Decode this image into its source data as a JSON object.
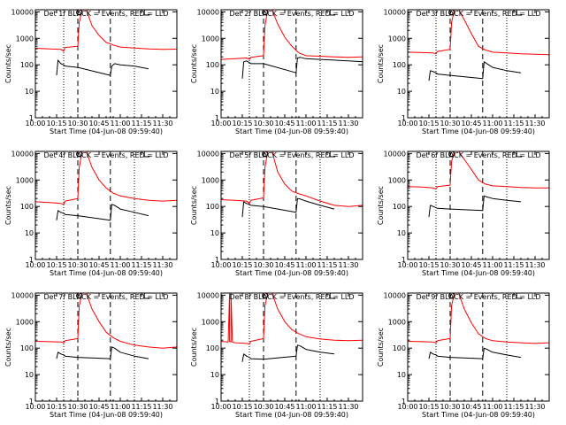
{
  "chart_data": {
    "type": "line",
    "xlabel": "Start Time (04-Jun-08 09:59:40)",
    "ylabel": "Counts/sec",
    "xlim": [
      "10:00",
      "11:40"
    ],
    "x_tick_labels": [
      "10:00",
      "10:15",
      "10:30",
      "10:45",
      "11:00",
      "11:15",
      "11:30"
    ],
    "y_scale": "log",
    "ylim": [
      1,
      12000
    ],
    "y_tick_labels": [
      "1",
      "10",
      "100",
      "1000",
      "10000"
    ],
    "colors": {
      "events": "#000000",
      "lld": "#ff0000"
    },
    "dotted_lines_x": [
      "10:20",
      "11:10"
    ],
    "dashed_lines_x": [
      "10:30",
      "10:53"
    ],
    "panels": [
      {
        "title": "Det 1f BLACK = Events, RED = LLD",
        "series": [
          {
            "key": "lld",
            "color": "#ff0000",
            "x": [
              "10:00",
              "10:10",
              "10:18",
              "10:20",
              "10:21",
              "10:30",
              "10:31",
              "10:33",
              "10:36",
              "10:40",
              "10:45",
              "10:50",
              "10:55",
              "11:00",
              "11:10",
              "11:20",
              "11:30",
              "11:40"
            ],
            "values": [
              420,
              400,
              380,
              330,
              450,
              500,
              4000,
              12000,
              12000,
              3000,
              1300,
              700,
              560,
              470,
              430,
              400,
              380,
              390
            ]
          },
          {
            "key": "events",
            "color": "#000000",
            "x": [
              "10:15",
              "10:16",
              "10:18",
              "10:20",
              "10:21",
              "10:30",
              "10:53",
              "10:54",
              "10:56",
              "11:00",
              "11:10",
              "11:20"
            ],
            "values": [
              40,
              150,
              110,
              100,
              90,
              80,
              40,
              90,
              110,
              100,
              90,
              70
            ]
          }
        ]
      },
      {
        "title": "Det 2f BLACK = Events, RED = LLD",
        "series": [
          {
            "key": "lld",
            "color": "#ff0000",
            "x": [
              "10:00",
              "10:10",
              "10:18",
              "10:20",
              "10:21",
              "10:30",
              "10:31",
              "10:33",
              "10:36",
              "10:40",
              "10:45",
              "10:50",
              "10:55",
              "11:00",
              "11:10",
              "11:20",
              "11:30",
              "11:40"
            ],
            "values": [
              160,
              170,
              180,
              160,
              190,
              220,
              3000,
              12000,
              12000,
              3500,
              1100,
              500,
              280,
              220,
              210,
              200,
              190,
              200
            ]
          },
          {
            "key": "events",
            "color": "#000000",
            "x": [
              "10:15",
              "10:16",
              "10:18",
              "10:20",
              "10:21",
              "10:30",
              "10:53",
              "10:54",
              "10:56",
              "11:00",
              "11:10",
              "11:20",
              "11:30",
              "11:40"
            ],
            "values": [
              30,
              130,
              140,
              120,
              110,
              110,
              50,
              180,
              190,
              170,
              160,
              150,
              140,
              130
            ]
          }
        ]
      },
      {
        "title": "Det 3f BLACK = Events, RED = LLD",
        "series": [
          {
            "key": "lld",
            "color": "#ff0000",
            "x": [
              "10:00",
              "10:10",
              "10:18",
              "10:20",
              "10:21",
              "10:30",
              "10:31",
              "10:33",
              "10:36",
              "10:40",
              "10:45",
              "10:50",
              "10:55",
              "11:00",
              "11:10",
              "11:20",
              "11:30",
              "11:40"
            ],
            "values": [
              300,
              290,
              280,
              260,
              320,
              380,
              4000,
              12000,
              12000,
              5000,
              1500,
              500,
              360,
              300,
              280,
              260,
              250,
              240
            ]
          },
          {
            "key": "events",
            "color": "#000000",
            "x": [
              "10:15",
              "10:16",
              "10:18",
              "10:20",
              "10:21",
              "10:30",
              "10:53",
              "10:54",
              "10:56",
              "11:00",
              "11:10",
              "11:20"
            ],
            "values": [
              25,
              60,
              55,
              50,
              45,
              40,
              30,
              130,
              110,
              80,
              60,
              50
            ]
          }
        ]
      },
      {
        "title": "Det 4f BLACK = Events, RED = LLD",
        "series": [
          {
            "key": "lld",
            "color": "#ff0000",
            "x": [
              "10:00",
              "10:10",
              "10:18",
              "10:20",
              "10:21",
              "10:30",
              "10:31",
              "10:33",
              "10:36",
              "10:40",
              "10:45",
              "10:50",
              "10:55",
              "11:00",
              "11:10",
              "11:20",
              "11:30",
              "11:40"
            ],
            "values": [
              150,
              140,
              130,
              120,
              160,
              200,
              3000,
              12000,
              12000,
              3000,
              1000,
              500,
              320,
              250,
              200,
              170,
              160,
              170
            ]
          },
          {
            "key": "events",
            "color": "#000000",
            "x": [
              "10:15",
              "10:16",
              "10:18",
              "10:20",
              "10:21",
              "10:30",
              "10:53",
              "10:54",
              "10:56",
              "11:00",
              "11:10",
              "11:20"
            ],
            "values": [
              30,
              70,
              60,
              55,
              50,
              45,
              30,
              120,
              110,
              80,
              60,
              45
            ]
          }
        ]
      },
      {
        "title": "Det 5f BLACK = Events, RED = LLD",
        "series": [
          {
            "key": "lld",
            "color": "#ff0000",
            "x": [
              "10:00",
              "10:10",
              "10:18",
              "10:20",
              "10:21",
              "10:30",
              "10:31",
              "10:33",
              "10:36",
              "10:40",
              "10:45",
              "10:50",
              "10:55",
              "11:00",
              "11:10",
              "11:20",
              "11:30",
              "11:40"
            ],
            "values": [
              180,
              170,
              160,
              130,
              170,
              210,
              3000,
              12000,
              12000,
              2000,
              700,
              380,
              300,
              250,
              160,
              110,
              100,
              110
            ]
          },
          {
            "key": "events",
            "color": "#000000",
            "x": [
              "10:15",
              "10:16",
              "10:18",
              "10:20",
              "10:21",
              "10:30",
              "10:53",
              "10:54",
              "10:56",
              "11:00",
              "11:10",
              "11:20"
            ],
            "values": [
              40,
              150,
              130,
              120,
              110,
              100,
              60,
              200,
              190,
              160,
              110,
              80
            ]
          }
        ]
      },
      {
        "title": "Det 6f BLACK = Events, RED = LLD",
        "series": [
          {
            "key": "lld",
            "color": "#ff0000",
            "x": [
              "10:00",
              "10:10",
              "10:18",
              "10:20",
              "10:21",
              "10:30",
              "10:31",
              "10:33",
              "10:36",
              "10:40",
              "10:45",
              "10:50",
              "10:55",
              "11:00",
              "11:10",
              "11:20",
              "11:30",
              "11:40"
            ],
            "values": [
              560,
              540,
              500,
              460,
              560,
              640,
              5000,
              12000,
              12000,
              6000,
              2500,
              1000,
              700,
              600,
              560,
              520,
              500,
              500
            ]
          },
          {
            "key": "events",
            "color": "#000000",
            "x": [
              "10:15",
              "10:16",
              "10:18",
              "10:20",
              "10:21",
              "10:30",
              "10:53",
              "10:54",
              "10:56",
              "11:00",
              "11:10",
              "11:20"
            ],
            "values": [
              40,
              110,
              100,
              90,
              85,
              80,
              70,
              250,
              230,
              200,
              170,
              150
            ]
          }
        ]
      },
      {
        "title": "Det 7f BLACK = Events, RED = LLD",
        "series": [
          {
            "key": "lld",
            "color": "#ff0000",
            "x": [
              "10:00",
              "10:10",
              "10:18",
              "10:20",
              "10:21",
              "10:30",
              "10:31",
              "10:33",
              "10:36",
              "10:40",
              "10:45",
              "10:50",
              "10:55",
              "11:00",
              "11:10",
              "11:20",
              "11:30",
              "11:40"
            ],
            "values": [
              180,
              175,
              170,
              160,
              190,
              230,
              4000,
              12000,
              12000,
              3000,
              1000,
              400,
              250,
              180,
              130,
              110,
              100,
              110
            ]
          },
          {
            "key": "events",
            "color": "#000000",
            "x": [
              "10:15",
              "10:16",
              "10:18",
              "10:20",
              "10:21",
              "10:30",
              "10:53",
              "10:54",
              "10:56",
              "11:00",
              "11:10",
              "11:20"
            ],
            "values": [
              40,
              70,
              60,
              55,
              50,
              45,
              40,
              110,
              100,
              70,
              50,
              40
            ]
          }
        ]
      },
      {
        "title": "Det 8f BLACK = Events, RED = LLD",
        "series": [
          {
            "key": "lld",
            "color": "#ff0000",
            "x": [
              "10:00",
              "10:05",
              "10:06",
              "10:06",
              "10:07",
              "10:07",
              "10:08",
              "10:10",
              "10:18",
              "10:20",
              "10:21",
              "10:30",
              "10:31",
              "10:33",
              "10:36",
              "10:40",
              "10:45",
              "10:50",
              "10:55",
              "11:00",
              "11:10",
              "11:20",
              "11:30",
              "11:40"
            ],
            "values": [
              180,
              170,
              12000,
              180,
              170,
              12000,
              170,
              160,
              150,
              140,
              180,
              230,
              4000,
              12000,
              12000,
              3000,
              1000,
              500,
              350,
              270,
              220,
              200,
              190,
              200
            ]
          },
          {
            "key": "events",
            "color": "#000000",
            "x": [
              "10:15",
              "10:16",
              "10:18",
              "10:20",
              "10:21",
              "10:30",
              "10:53",
              "10:54",
              "10:56",
              "11:00",
              "11:10",
              "11:20"
            ],
            "values": [
              30,
              60,
              50,
              45,
              40,
              38,
              50,
              130,
              120,
              90,
              70,
              60
            ]
          }
        ]
      },
      {
        "title": "Det 9f BLACK = Events, RED = LLD",
        "series": [
          {
            "key": "lld",
            "color": "#ff0000",
            "x": [
              "10:00",
              "10:10",
              "10:18",
              "10:20",
              "10:21",
              "10:30",
              "10:31",
              "10:33",
              "10:36",
              "10:40",
              "10:45",
              "10:50",
              "10:55",
              "11:00",
              "11:10",
              "11:20",
              "11:30",
              "11:40"
            ],
            "values": [
              180,
              175,
              170,
              160,
              190,
              230,
              4000,
              12000,
              12000,
              3000,
              900,
              350,
              230,
              190,
              170,
              160,
              150,
              160
            ]
          },
          {
            "key": "events",
            "color": "#000000",
            "x": [
              "10:15",
              "10:16",
              "10:18",
              "10:20",
              "10:21",
              "10:30",
              "10:53",
              "10:54",
              "10:56",
              "11:00",
              "11:10",
              "11:20"
            ],
            "values": [
              40,
              70,
              60,
              55,
              50,
              45,
              40,
              100,
              90,
              70,
              55,
              45
            ]
          }
        ]
      }
    ]
  }
}
